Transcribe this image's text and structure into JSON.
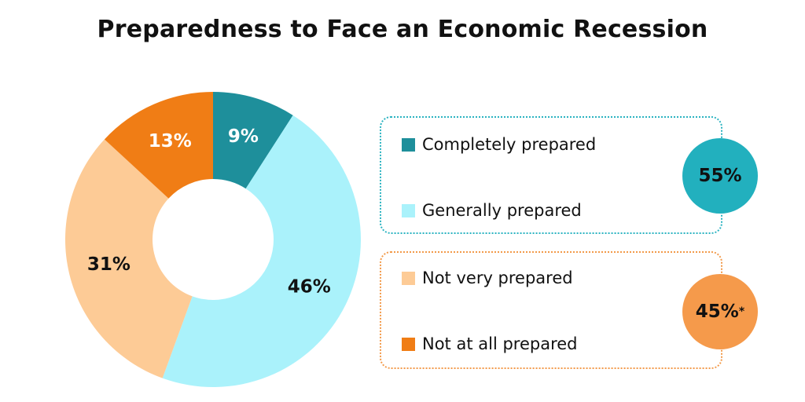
{
  "chart_data": {
    "type": "pie",
    "title": "Preparedness to Face an Economic Recession",
    "slices": [
      {
        "label": "Completely prepared",
        "value": 9,
        "value_label": "9%",
        "color": "#1e8f9b",
        "label_color": "#ffffff"
      },
      {
        "label": "Generally prepared",
        "value": 46,
        "value_label": "46%",
        "color": "#aaf2fb",
        "label_color": "#111111"
      },
      {
        "label": "Not very prepared",
        "value": 31,
        "value_label": "31%",
        "color": "#fdcb96",
        "label_color": "#111111"
      },
      {
        "label": "Not at all prepared",
        "value": 13,
        "value_label": "13%",
        "color": "#f07d15",
        "label_color": "#ffffff"
      }
    ],
    "groups": [
      {
        "members": [
          "Completely prepared",
          "Generally prepared"
        ],
        "total_label": "55%",
        "asterisk": "",
        "color": "#22b0be",
        "border_color": "#2bb3c1"
      },
      {
        "members": [
          "Not very prepared",
          "Not at all prepared"
        ],
        "total_label": "45%",
        "asterisk": "*",
        "color": "#f59a4b",
        "border_color": "#f29a4a"
      }
    ],
    "legend_placement": "right"
  }
}
